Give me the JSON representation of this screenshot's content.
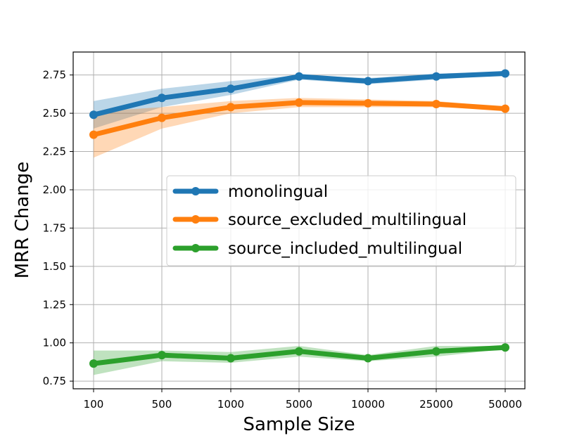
{
  "chart_data": {
    "type": "line",
    "xlabel": "Sample Size",
    "ylabel": "MRR Change",
    "categories": [
      "100",
      "500",
      "1000",
      "5000",
      "10000",
      "25000",
      "50000"
    ],
    "ylim": [
      0.7,
      2.9
    ],
    "yticks": [
      "0.75",
      "1.00",
      "1.25",
      "1.50",
      "1.75",
      "2.00",
      "2.25",
      "2.50",
      "2.75"
    ],
    "grid": true,
    "legend_position": "center-right",
    "series": [
      {
        "name": "monolingual",
        "color": "#1f77b4",
        "values": [
          2.49,
          2.6,
          2.66,
          2.74,
          2.71,
          2.74,
          2.76
        ],
        "band_low": [
          2.4,
          2.54,
          2.62,
          2.72,
          2.69,
          2.72,
          2.75
        ],
        "band_high": [
          2.58,
          2.66,
          2.71,
          2.75,
          2.73,
          2.76,
          2.77
        ]
      },
      {
        "name": "source_excluded_multilingual",
        "color": "#ff7f0e",
        "values": [
          2.36,
          2.47,
          2.54,
          2.57,
          2.565,
          2.56,
          2.53
        ],
        "band_low": [
          2.21,
          2.4,
          2.5,
          2.54,
          2.54,
          2.54,
          2.52
        ],
        "band_high": [
          2.51,
          2.54,
          2.58,
          2.6,
          2.59,
          2.58,
          2.54
        ]
      },
      {
        "name": "source_included_multilingual",
        "color": "#2ca02c",
        "values": [
          0.865,
          0.92,
          0.9,
          0.945,
          0.9,
          0.945,
          0.97
        ],
        "band_low": [
          0.79,
          0.88,
          0.87,
          0.91,
          0.88,
          0.91,
          0.96
        ],
        "band_high": [
          0.95,
          0.95,
          0.94,
          0.98,
          0.92,
          0.98,
          0.98
        ]
      }
    ]
  }
}
